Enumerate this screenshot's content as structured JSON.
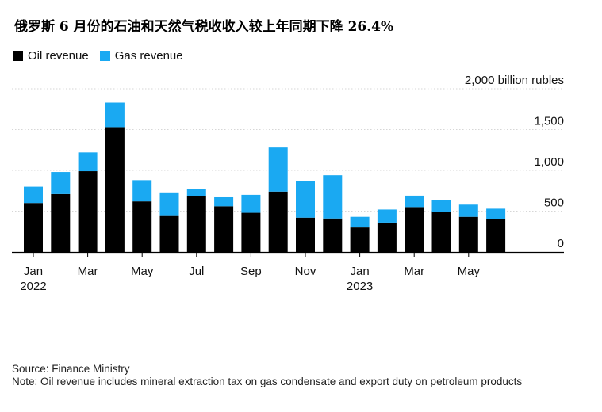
{
  "title": "俄罗斯 6 月份的石油和天然气税收收入较上年同期下降 26.4%",
  "legend": [
    {
      "label": "Oil revenue",
      "color": "#000000"
    },
    {
      "label": "Gas revenue",
      "color": "#1aa9f2"
    }
  ],
  "chart_data": {
    "type": "bar",
    "stacked": true,
    "categories": [
      "Jan 2022",
      "Feb 2022",
      "Mar 2022",
      "Apr 2022",
      "May 2022",
      "Jun 2022",
      "Jul 2022",
      "Aug 2022",
      "Sep 2022",
      "Oct 2022",
      "Nov 2022",
      "Dec 2022",
      "Jan 2023",
      "Feb 2023",
      "Mar 2023",
      "Apr 2023",
      "May 2023",
      "Jun 2023"
    ],
    "series": [
      {
        "name": "Oil revenue",
        "color": "#000000",
        "values": [
          600,
          710,
          990,
          1530,
          620,
          450,
          680,
          560,
          480,
          740,
          420,
          410,
          300,
          360,
          550,
          490,
          430,
          400
        ]
      },
      {
        "name": "Gas revenue",
        "color": "#1aa9f2",
        "values": [
          200,
          270,
          230,
          300,
          260,
          280,
          90,
          110,
          220,
          540,
          450,
          530,
          130,
          160,
          140,
          150,
          150,
          130
        ]
      }
    ],
    "ylabel": "billion rubles",
    "ylim": [
      0,
      2000
    ],
    "yticks": [
      {
        "value": 0,
        "label": "0"
      },
      {
        "value": 500,
        "label": "500"
      },
      {
        "value": 1000,
        "label": "1,000"
      },
      {
        "value": 1500,
        "label": "1,500"
      },
      {
        "value": 2000,
        "label": "2,000 billion rubles"
      }
    ],
    "xticks": [
      {
        "index": 0,
        "month": "Jan",
        "year": "2022"
      },
      {
        "index": 2,
        "month": "Mar",
        "year": ""
      },
      {
        "index": 4,
        "month": "May",
        "year": ""
      },
      {
        "index": 6,
        "month": "Jul",
        "year": ""
      },
      {
        "index": 8,
        "month": "Sep",
        "year": ""
      },
      {
        "index": 10,
        "month": "Nov",
        "year": ""
      },
      {
        "index": 12,
        "month": "Jan",
        "year": "2023"
      },
      {
        "index": 14,
        "month": "Mar",
        "year": ""
      },
      {
        "index": 16,
        "month": "May",
        "year": ""
      }
    ],
    "grid": true,
    "legend_position": "top-left"
  },
  "footer": {
    "source": "Source: Finance Ministry",
    "note": "Note: Oil revenue includes mineral extraction tax on gas condensate and export duty on petroleum products"
  }
}
